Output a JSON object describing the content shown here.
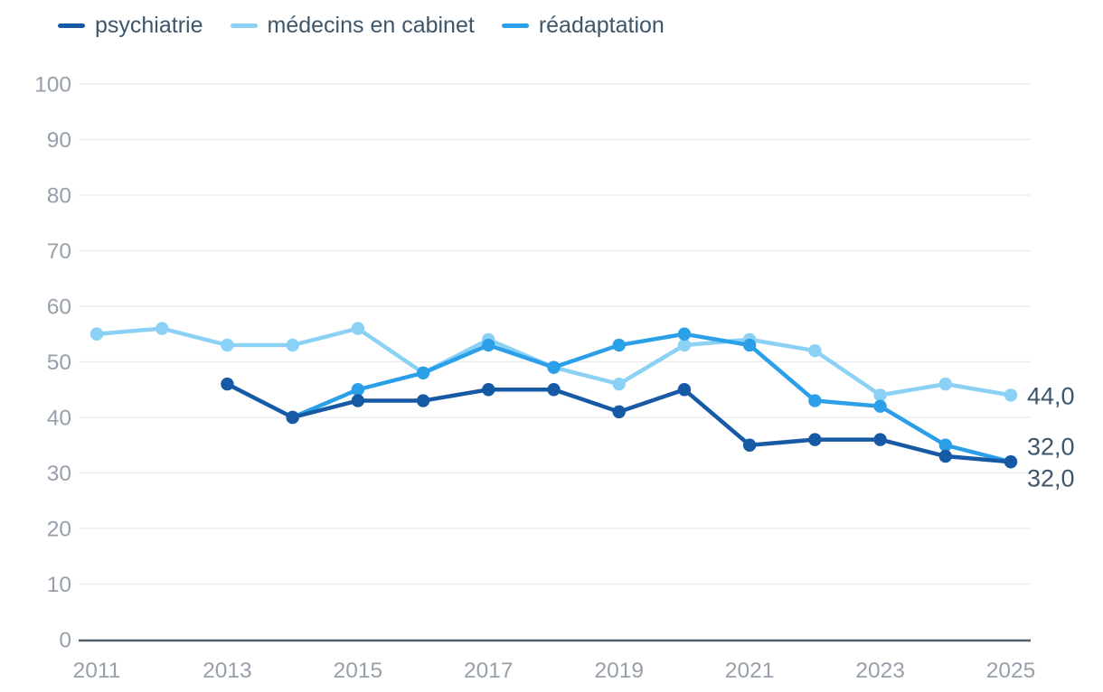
{
  "chart_data": {
    "type": "line",
    "x": [
      2011,
      2012,
      2013,
      2014,
      2015,
      2016,
      2017,
      2018,
      2019,
      2020,
      2021,
      2022,
      2023,
      2024,
      2025
    ],
    "series": [
      {
        "name": "psychiatrie",
        "color": "#1659A4",
        "values": [
          null,
          null,
          46,
          40,
          43,
          43,
          45,
          45,
          41,
          45,
          35,
          36,
          36,
          33,
          32
        ],
        "end_label": "32,0"
      },
      {
        "name": "médecins en cabinet",
        "color": "#8AD1F5",
        "values": [
          55,
          56,
          53,
          53,
          56,
          48,
          54,
          49,
          46,
          53,
          54,
          52,
          44,
          46,
          44
        ],
        "end_label": "44,0"
      },
      {
        "name": "réadaptation",
        "color": "#2B9FE8",
        "values": [
          null,
          null,
          null,
          40,
          45,
          48,
          53,
          49,
          53,
          55,
          53,
          43,
          42,
          35,
          32
        ],
        "end_label": "32,0"
      }
    ],
    "ylim": [
      0,
      100
    ],
    "yticks": [
      0,
      10,
      20,
      30,
      40,
      50,
      60,
      70,
      80,
      90,
      100
    ],
    "xticks": [
      2011,
      2013,
      2015,
      2017,
      2019,
      2021,
      2023,
      2025
    ],
    "grid": true,
    "legend_position": "top-left"
  },
  "colors": {
    "background": "#FFFFFF",
    "grid": "#E9EBEE",
    "axis": "#52616D",
    "tick_text": "#97A0AA",
    "value_label_text": "#3D566B"
  }
}
